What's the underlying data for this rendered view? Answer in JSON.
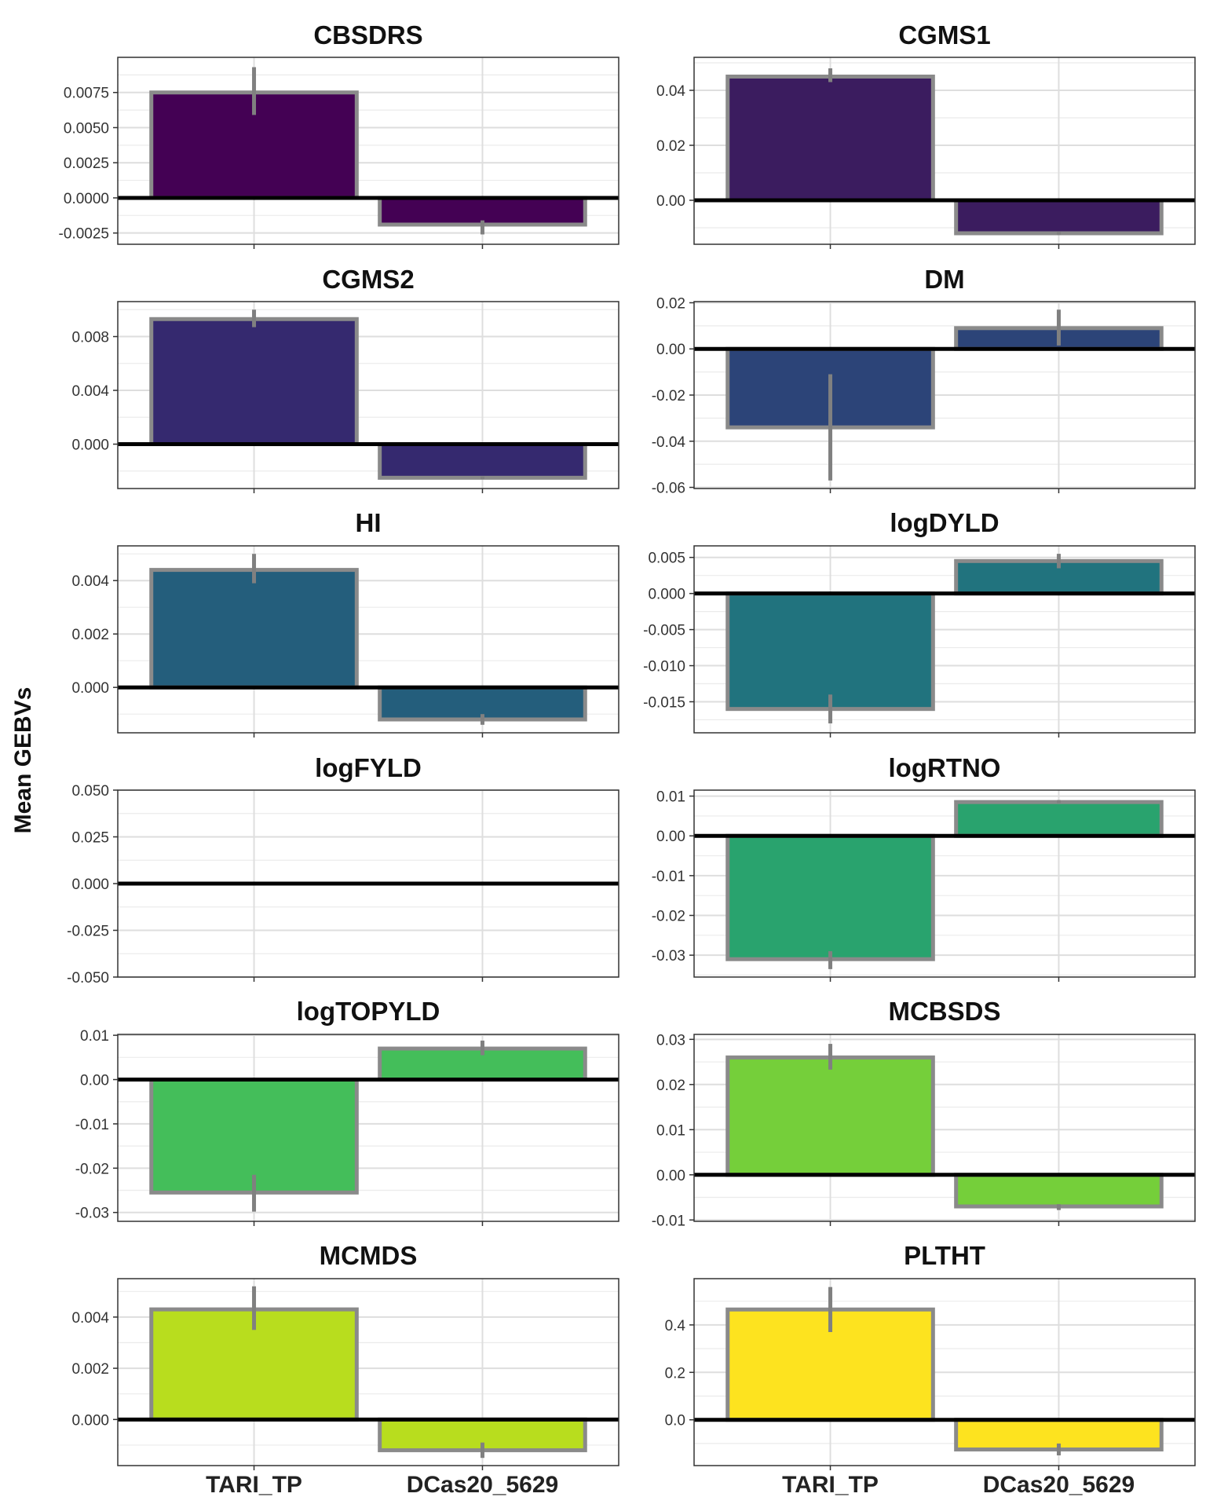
{
  "figure": {
    "ylabel": "Mean GEBVs"
  },
  "chart_data": [
    {
      "type": "bar",
      "title": "CBSDRS",
      "categories": [
        "TARI_TP",
        "DCas20_5629"
      ],
      "values": [
        0.0075,
        -0.0019
      ],
      "error_low": [
        0.0059,
        -0.0026
      ],
      "error_high": [
        0.0093,
        -0.0016
      ],
      "ylim": [
        -0.0033,
        0.01
      ],
      "yticks": [
        "0.0075",
        "0.0050",
        "0.0025",
        "0.0000",
        "-0.0025"
      ],
      "ytick_values": [
        0.0075,
        0.005,
        0.0025,
        0,
        -0.0025
      ],
      "color": "#440154"
    },
    {
      "type": "bar",
      "title": "CGMS1",
      "categories": [
        "TARI_TP",
        "DCas20_5629"
      ],
      "values": [
        0.045,
        -0.012
      ],
      "error_low": [
        0.043,
        -0.0125
      ],
      "error_high": [
        0.048,
        -0.0115
      ],
      "ylim": [
        -0.016,
        0.052
      ],
      "yticks": [
        "0.04",
        "0.02",
        "0.00"
      ],
      "ytick_values": [
        0.04,
        0.02,
        0
      ],
      "color": "#3b1c5f"
    },
    {
      "type": "bar",
      "title": "CGMS2",
      "categories": [
        "TARI_TP",
        "DCas20_5629"
      ],
      "values": [
        0.0093,
        -0.0025
      ],
      "error_low": [
        0.0087,
        -0.0026
      ],
      "error_high": [
        0.01,
        -0.0024
      ],
      "ylim": [
        -0.0033,
        0.0106
      ],
      "yticks": [
        "0.008",
        "0.004",
        "0.000"
      ],
      "ytick_values": [
        0.008,
        0.004,
        0
      ],
      "color": "#35296f"
    },
    {
      "type": "bar",
      "title": "DM",
      "categories": [
        "TARI_TP",
        "DCas20_5629"
      ],
      "values": [
        -0.034,
        0.009
      ],
      "error_low": [
        -0.057,
        0.0015
      ],
      "error_high": [
        -0.011,
        0.017
      ],
      "ylim": [
        -0.0605,
        0.0205
      ],
      "yticks": [
        "0.02",
        "0.00",
        "-0.02",
        "-0.04",
        "-0.06"
      ],
      "ytick_values": [
        0.02,
        0,
        -0.02,
        -0.04,
        -0.06
      ],
      "color": "#2c4478"
    },
    {
      "type": "bar",
      "title": "HI",
      "categories": [
        "TARI_TP",
        "DCas20_5629"
      ],
      "values": [
        0.0044,
        -0.0012
      ],
      "error_low": [
        0.0039,
        -0.0014
      ],
      "error_high": [
        0.005,
        -0.001
      ],
      "ylim": [
        -0.0017,
        0.0053
      ],
      "yticks": [
        "0.004",
        "0.002",
        "0.000"
      ],
      "ytick_values": [
        0.004,
        0.002,
        0
      ],
      "color": "#245e7c"
    },
    {
      "type": "bar",
      "title": "logDYLD",
      "categories": [
        "TARI_TP",
        "DCas20_5629"
      ],
      "values": [
        -0.016,
        0.0045
      ],
      "error_low": [
        -0.018,
        0.0035
      ],
      "error_high": [
        -0.014,
        0.0055
      ],
      "ylim": [
        -0.0193,
        0.0066
      ],
      "yticks": [
        "0.005",
        "0.000",
        "-0.005",
        "-0.010",
        "-0.015"
      ],
      "ytick_values": [
        0.005,
        0,
        -0.005,
        -0.01,
        -0.015
      ],
      "color": "#21737e"
    },
    {
      "type": "bar",
      "title": "logFYLD",
      "categories": [
        "TARI_TP",
        "DCas20_5629"
      ],
      "values": [
        0,
        0
      ],
      "error_low": [
        0,
        0
      ],
      "error_high": [
        0,
        0
      ],
      "ylim": [
        -0.05,
        0.05
      ],
      "yticks": [
        "0.050",
        "0.025",
        "0.000",
        "-0.025",
        "-0.050"
      ],
      "ytick_values": [
        0.05,
        0.025,
        0,
        -0.025,
        -0.05
      ],
      "color": "#1f8a84"
    },
    {
      "type": "bar",
      "title": "logRTNO",
      "categories": [
        "TARI_TP",
        "DCas20_5629"
      ],
      "values": [
        -0.031,
        0.0085
      ],
      "error_low": [
        -0.0335,
        0.0082
      ],
      "error_high": [
        -0.029,
        0.009
      ],
      "ylim": [
        -0.0355,
        0.0115
      ],
      "yticks": [
        "0.01",
        "0.00",
        "-0.01",
        "-0.02",
        "-0.03"
      ],
      "ytick_values": [
        0.01,
        0,
        -0.01,
        -0.02,
        -0.03
      ],
      "color": "#29a36e"
    },
    {
      "type": "bar",
      "title": "logTOPYLD",
      "categories": [
        "TARI_TP",
        "DCas20_5629"
      ],
      "values": [
        -0.0255,
        0.007
      ],
      "error_low": [
        -0.0298,
        0.0055
      ],
      "error_high": [
        -0.0215,
        0.0088
      ],
      "ylim": [
        -0.032,
        0.0102
      ],
      "yticks": [
        "0.01",
        "0.00",
        "-0.01",
        "-0.02",
        "-0.03"
      ],
      "ytick_values": [
        0.01,
        0,
        -0.01,
        -0.02,
        -0.03
      ],
      "color": "#44be5a"
    },
    {
      "type": "bar",
      "title": "MCBSDS",
      "categories": [
        "TARI_TP",
        "DCas20_5629"
      ],
      "values": [
        0.026,
        -0.007
      ],
      "error_low": [
        0.0233,
        -0.0078
      ],
      "error_high": [
        0.029,
        -0.0065
      ],
      "ylim": [
        -0.0103,
        0.0311
      ],
      "yticks": [
        "0.03",
        "0.02",
        "0.01",
        "0.00",
        "-0.01"
      ],
      "ytick_values": [
        0.03,
        0.02,
        0.01,
        0,
        -0.01
      ],
      "color": "#75cf3a"
    },
    {
      "type": "bar",
      "title": "MCMDS",
      "categories": [
        "TARI_TP",
        "DCas20_5629"
      ],
      "values": [
        0.0043,
        -0.0012
      ],
      "error_low": [
        0.0035,
        -0.0015
      ],
      "error_high": [
        0.0052,
        -0.0009
      ],
      "ylim": [
        -0.0018,
        0.0055
      ],
      "yticks": [
        "0.004",
        "0.002",
        "0.000"
      ],
      "ytick_values": [
        0.004,
        0.002,
        0
      ],
      "color": "#b8dd1e"
    },
    {
      "type": "bar",
      "title": "PLTHT",
      "categories": [
        "TARI_TP",
        "DCas20_5629"
      ],
      "values": [
        0.465,
        -0.125
      ],
      "error_low": [
        0.37,
        -0.15
      ],
      "error_high": [
        0.56,
        -0.1
      ],
      "ylim": [
        -0.193,
        0.595
      ],
      "yticks": [
        "0.4",
        "0.2",
        "0.0"
      ],
      "ytick_values": [
        0.4,
        0.2,
        0
      ],
      "color": "#fde31f"
    }
  ],
  "x_tick_labels": [
    "TARI_TP",
    "DCas20_5629"
  ]
}
